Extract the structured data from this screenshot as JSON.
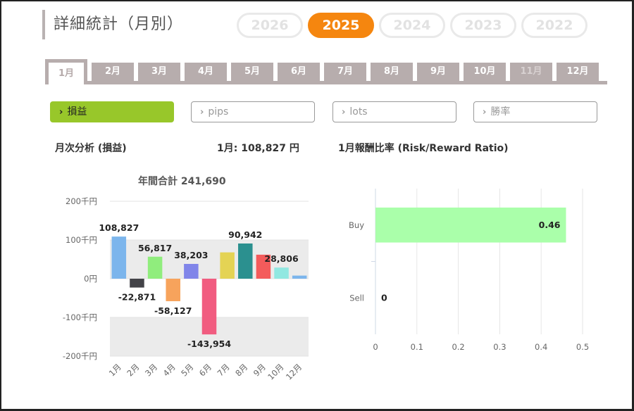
{
  "page": {
    "title": "詳細統計（月別）",
    "years": [
      "2026",
      "2025",
      "2024",
      "2023",
      "2022"
    ],
    "active_year": "2025",
    "months": [
      "1月",
      "2月",
      "3月",
      "4月",
      "5月",
      "6月",
      "7月",
      "8月",
      "9月",
      "10月",
      "11月",
      "12月"
    ],
    "active_month": "1月",
    "disabled_months": [
      "11月"
    ]
  },
  "metrics": [
    {
      "label": "損益",
      "active": true
    },
    {
      "label": "pips",
      "active": false
    },
    {
      "label": "lots",
      "active": false
    },
    {
      "label": "勝率",
      "active": false
    }
  ],
  "analysis": {
    "title": "月次分析 (損益)",
    "month_value": "1月:  108,827 円",
    "annual_total": "年間合計 241,690"
  },
  "risk_reward": {
    "title": "1月報酬比率 (Risk/Reward Ratio)"
  },
  "colors": {
    "accent": "#f5860f",
    "metric_active": "#98c72a",
    "tab": "#b7adad"
  },
  "chart_data": [
    {
      "type": "bar",
      "categories": [
        "1月",
        "2月",
        "3月",
        "4月",
        "5月",
        "6月",
        "7月",
        "8月",
        "9月",
        "10月",
        "12月"
      ],
      "values": [
        108827,
        -22871,
        56817,
        -58127,
        38203,
        -143954,
        68000,
        90942,
        62000,
        28806,
        8000
      ],
      "labels": [
        "108,827",
        "-22,871",
        "56,817",
        "-58,127",
        "38,203",
        "-143,954",
        "",
        "90,942",
        "",
        "28,806",
        ""
      ],
      "colors": [
        "#7cb5ec",
        "#434348",
        "#90ed7d",
        "#f7a35c",
        "#8085e9",
        "#f15c80",
        "#e4d354",
        "#2b908f",
        "#f45b5b",
        "#91e8e1",
        "#7cb5ec"
      ],
      "ylim": [
        -200000,
        200000
      ],
      "yticks": [
        200000,
        100000,
        0,
        -100000,
        -200000
      ],
      "ytick_labels": [
        "200千円",
        "100千円",
        "0円",
        "-100千円",
        "-200千円"
      ]
    },
    {
      "type": "bar",
      "orientation": "horizontal",
      "categories": [
        "Buy",
        "Sell"
      ],
      "values": [
        0.46,
        0
      ],
      "labels": [
        "0.46",
        "0"
      ],
      "colors": [
        "#aaffaa",
        "#aaffaa"
      ],
      "xlim": [
        0,
        0.5
      ],
      "xticks": [
        0,
        0.1,
        0.2,
        0.3,
        0.4,
        0.5
      ]
    }
  ]
}
